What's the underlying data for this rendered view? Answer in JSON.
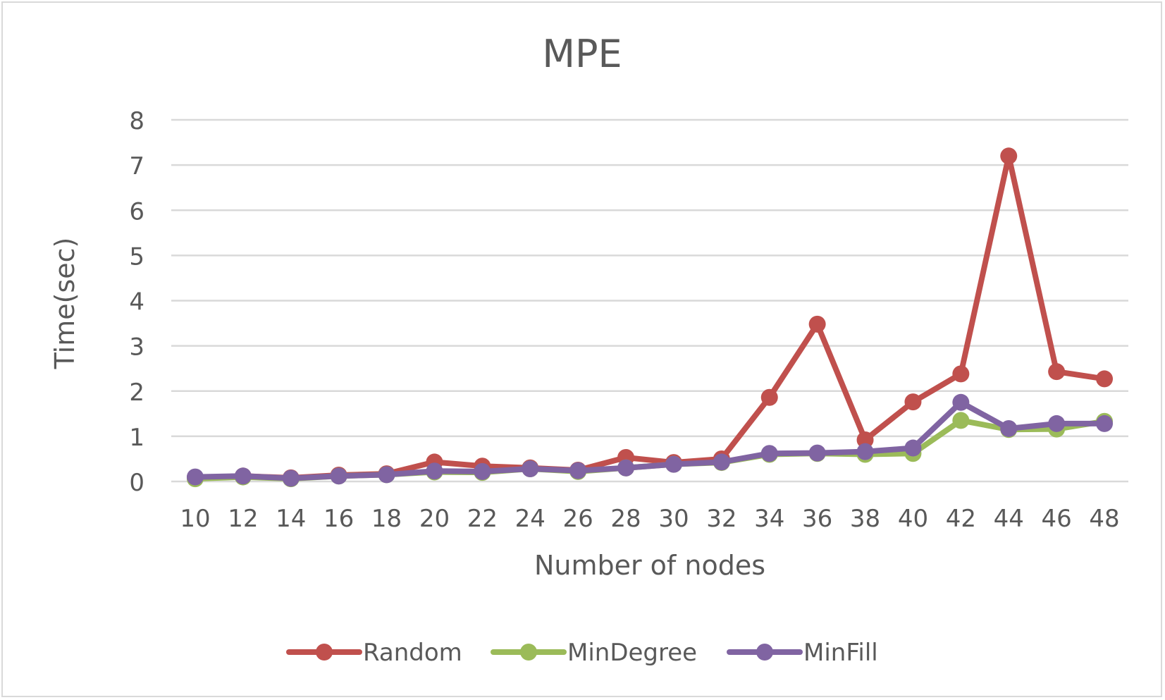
{
  "chart_data": {
    "type": "line",
    "title": "MPE",
    "xlabel": "Number of nodes",
    "ylabel": "Time(sec)",
    "categories": [
      "10",
      "12",
      "14",
      "16",
      "18",
      "20",
      "22",
      "24",
      "26",
      "28",
      "30",
      "32",
      "34",
      "36",
      "38",
      "40",
      "42",
      "44",
      "46",
      "48"
    ],
    "ylim": [
      0,
      8
    ],
    "yticks": [
      "0",
      "1",
      "2",
      "3",
      "4",
      "5",
      "6",
      "7",
      "8"
    ],
    "grid": true,
    "legend_position": "bottom",
    "series": [
      {
        "name": "Random",
        "color": "#c0504d",
        "values": [
          0.08,
          0.12,
          0.08,
          0.14,
          0.17,
          0.43,
          0.34,
          0.3,
          0.25,
          0.53,
          0.42,
          0.5,
          1.86,
          3.48,
          0.92,
          1.76,
          2.38,
          7.2,
          2.43,
          2.27
        ]
      },
      {
        "name": "MinDegree",
        "color": "#9bbb59",
        "values": [
          0.06,
          0.1,
          0.06,
          0.12,
          0.15,
          0.21,
          0.2,
          0.28,
          0.22,
          0.3,
          0.38,
          0.42,
          0.6,
          0.62,
          0.6,
          0.62,
          1.35,
          1.15,
          1.16,
          1.33
        ]
      },
      {
        "name": "MinFill",
        "color": "#8064a2",
        "values": [
          0.1,
          0.12,
          0.07,
          0.12,
          0.15,
          0.23,
          0.22,
          0.28,
          0.24,
          0.3,
          0.38,
          0.43,
          0.62,
          0.63,
          0.66,
          0.74,
          1.75,
          1.17,
          1.28,
          1.28
        ]
      }
    ]
  }
}
